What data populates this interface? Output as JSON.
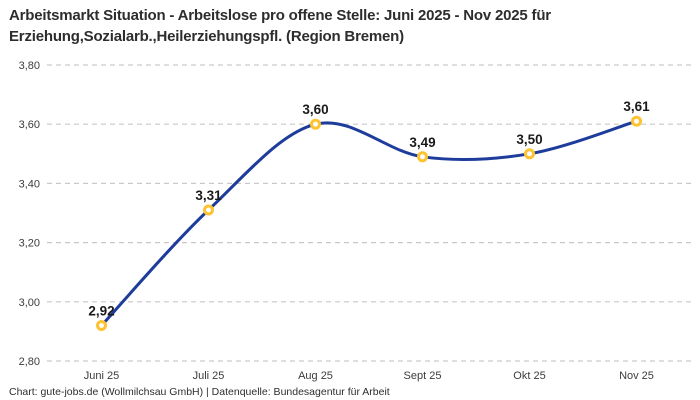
{
  "chart_data": {
    "type": "line",
    "title": "Arbeitsmarkt Situation - Arbeitslose pro offene Stelle: Juni 2025 - Nov 2025 für Erziehung,Sozialarb.,Heilerziehungspfl. (Region Bremen)",
    "title_display": "Arbeitsmarkt Situation - Arbeitslose pro offene Stelle: Juni 2025 - Nov 2025 für\nErziehung,Sozialarb.,Heilerziehungspfl. (Region Bremen)",
    "categories": [
      "Juni 25",
      "Juli 25",
      "Aug 25",
      "Sept 25",
      "Okt 25",
      "Nov 25"
    ],
    "values": [
      2.92,
      3.31,
      3.6,
      3.49,
      3.5,
      3.61
    ],
    "point_labels": [
      "2,92",
      "3,31",
      "3,60",
      "3,49",
      "3,50",
      "3,61"
    ],
    "yticks": {
      "values": [
        2.8,
        3.0,
        3.2,
        3.4,
        3.6,
        3.8
      ],
      "labels": [
        "2,80",
        "3,00",
        "3,20",
        "3,40",
        "3,60",
        "3,80"
      ]
    },
    "ylim": [
      2.8,
      3.8
    ],
    "xlabel": "",
    "ylabel": "",
    "grid": "horizontal-dashed",
    "legend": "none",
    "source_note": "Chart: gute-jobs.de (Wollmilchsau GmbH) | Datenquelle: Bundesagentur für Arbeit",
    "colors": {
      "line": "#1e3c9b",
      "marker_ring": "#fdc331",
      "marker_fill": "#ffffff",
      "grid": "#c9c9c9",
      "label": "#1a1a1a",
      "tick": "#3c3c3c",
      "title": "#2d2d2d",
      "background": "#ffffff"
    }
  }
}
